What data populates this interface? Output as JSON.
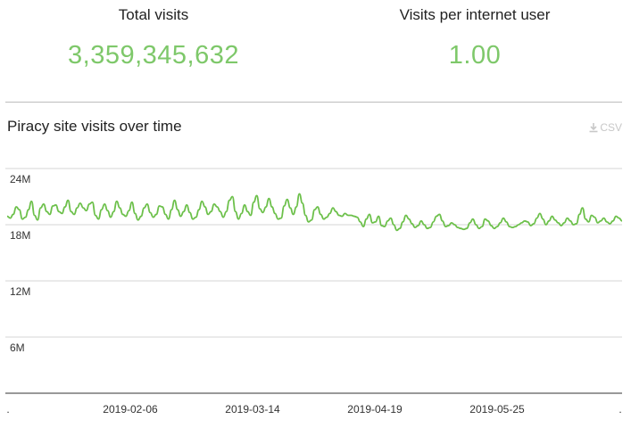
{
  "stats": {
    "total_visits": {
      "label": "Total visits",
      "value": "3,359,345,632"
    },
    "visits_per_user": {
      "label": "Visits per internet user",
      "value": "1.00"
    }
  },
  "section": {
    "title": "Piracy site visits over time",
    "csv_label": "CSV",
    "csv_icon": "download-icon"
  },
  "colors": {
    "accent": "#7ec86a",
    "line": "#6cc04a",
    "grid": "#d6d6d6",
    "axis": "#333333"
  },
  "chart_data": {
    "type": "line",
    "title": "",
    "xlabel": "",
    "ylabel": "",
    "ylim": [
      0,
      24000000
    ],
    "y_ticks": [
      {
        "value": 6000000,
        "label": "6M"
      },
      {
        "value": 12000000,
        "label": "12M"
      },
      {
        "value": 18000000,
        "label": "18M"
      },
      {
        "value": 24000000,
        "label": "24M"
      }
    ],
    "x_ticks": [
      ".",
      "2019-02-06",
      "2019-03-14",
      "2019-04-19",
      "2019-05-25",
      "."
    ],
    "grid": true,
    "series": [
      {
        "values": [
          18.9,
          18.7,
          19.1,
          19.9,
          19.6,
          18.6,
          18.8,
          19.6,
          20.5,
          19.0,
          18.5,
          19.8,
          20.2,
          19.4,
          19.1,
          20.0,
          20.1,
          19.4,
          19.2,
          19.9,
          20.6,
          19.4,
          19.1,
          19.8,
          20.3,
          19.8,
          19.5,
          20.2,
          20.4,
          19.0,
          18.6,
          19.6,
          20.2,
          19.5,
          18.8,
          19.4,
          20.5,
          19.8,
          19.1,
          18.9,
          19.5,
          20.4,
          19.2,
          18.5,
          18.9,
          19.8,
          20.2,
          19.3,
          18.8,
          19.1,
          20.0,
          19.9,
          19.1,
          18.6,
          19.6,
          20.6,
          19.6,
          18.9,
          19.4,
          20.1,
          19.3,
          18.6,
          18.8,
          19.6,
          20.5,
          19.9,
          19.1,
          19.4,
          20.2,
          19.9,
          19.4,
          18.8,
          19.4,
          20.6,
          21.0,
          19.4,
          18.6,
          19.2,
          20.1,
          19.4,
          19.0,
          20.4,
          21.1,
          19.7,
          19.3,
          19.9,
          20.8,
          19.9,
          19.2,
          18.6,
          18.7,
          20.0,
          20.7,
          19.8,
          19.1,
          19.9,
          21.3,
          20.3,
          19.0,
          18.3,
          18.5,
          19.6,
          19.9,
          19.1,
          18.6,
          18.8,
          19.2,
          19.8,
          19.4,
          19.0,
          18.9,
          19.2,
          19.0,
          19.0,
          18.9,
          18.8,
          18.3,
          17.8,
          18.6,
          19.1,
          18.2,
          18.3,
          18.9,
          17.9,
          17.8,
          18.4,
          18.7,
          18.0,
          17.4,
          17.6,
          18.3,
          19.0,
          18.6,
          18.1,
          17.7,
          17.9,
          18.4,
          18.0,
          17.6,
          17.7,
          18.3,
          18.9,
          19.1,
          18.4,
          17.8,
          17.9,
          18.2,
          18.0,
          17.7,
          17.6,
          17.5,
          17.6,
          18.2,
          18.6,
          18.0,
          17.6,
          17.8,
          18.6,
          18.4,
          17.9,
          17.6,
          17.8,
          18.2,
          18.7,
          18.3,
          17.8,
          17.7,
          17.8,
          18.0,
          18.2,
          18.4,
          18.3,
          17.9,
          18.1,
          18.7,
          19.2,
          18.6,
          18.0,
          18.4,
          18.9,
          18.5,
          18.2,
          17.9,
          18.2,
          18.7,
          18.4,
          18.0,
          18.1,
          19.1,
          19.8,
          18.6,
          18.3,
          19.0,
          18.8,
          18.2,
          18.4,
          18.7,
          18.3,
          18.1,
          18.4,
          18.9,
          18.7,
          18.4
        ]
      }
    ]
  }
}
